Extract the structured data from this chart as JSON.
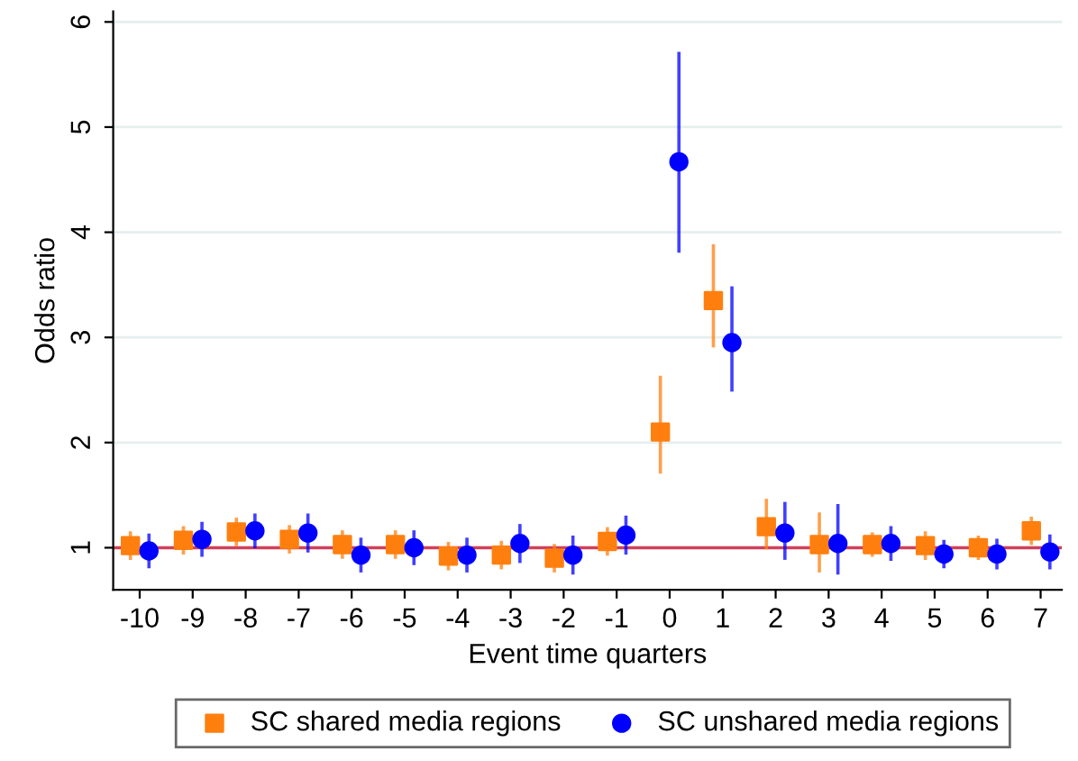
{
  "chart_data": {
    "type": "scatter",
    "xlabel": "Event time quarters",
    "ylabel": "Odds ratio",
    "categories": [
      "-10",
      "-9",
      "-8",
      "-7",
      "-6",
      "-5",
      "-4",
      "-3",
      "-2",
      "-1",
      "0",
      "1",
      "2",
      "3",
      "4",
      "5",
      "6",
      "7"
    ],
    "series": [
      {
        "name": "SC shared media regions",
        "color": "#ff7f0e",
        "marker": "square",
        "values": [
          1.02,
          1.07,
          1.15,
          1.08,
          1.03,
          1.03,
          0.92,
          0.93,
          0.9,
          1.06,
          2.1,
          3.35,
          1.2,
          1.03,
          1.03,
          1.02,
          1.0,
          1.16
        ],
        "errors": [
          0.12,
          0.12,
          0.12,
          0.12,
          0.12,
          0.12,
          0.12,
          0.12,
          0.12,
          0.12,
          [
            1.72,
            2.62
          ],
          [
            2.92,
            3.87
          ],
          [
            1.0,
            1.45
          ],
          [
            0.78,
            1.32
          ],
          0.1,
          0.12,
          0.1,
          0.12
        ]
      },
      {
        "name": "SC unshared media regions",
        "color": "#0000ff",
        "marker": "circle",
        "values": [
          0.97,
          1.08,
          1.16,
          1.14,
          0.93,
          1.0,
          0.93,
          1.04,
          0.93,
          1.12,
          4.67,
          2.95,
          1.14,
          1.04,
          1.04,
          0.94,
          0.94,
          0.96
        ],
        "errors": [
          0.15,
          0.15,
          0.15,
          0.17,
          0.15,
          0.15,
          0.15,
          0.17,
          0.17,
          0.17,
          [
            3.82,
            5.7
          ],
          [
            2.5,
            3.47
          ],
          [
            0.9,
            1.42
          ],
          [
            0.76,
            1.4
          ],
          0.15,
          0.12,
          0.13,
          0.15
        ]
      }
    ],
    "ylim": [
      0.6,
      6.1
    ],
    "yticks": [
      1,
      2,
      3,
      4,
      5,
      6
    ],
    "grid": "y",
    "legend": "bottom",
    "ref_lines": [
      {
        "axis": "y",
        "value": 1,
        "color": "#d0405a"
      }
    ]
  }
}
